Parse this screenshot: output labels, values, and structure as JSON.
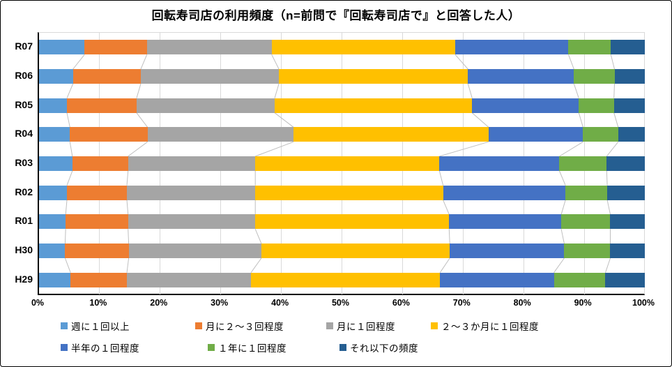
{
  "chart_data": {
    "type": "bar",
    "orientation": "horizontal-stacked",
    "title": "回転寿司店の利用頻度（n=前問で『回転寿司店で』と回答した人）",
    "categories": [
      "R07",
      "R06",
      "R05",
      "R04",
      "R03",
      "R02",
      "R01",
      "H30",
      "H29"
    ],
    "series": [
      {
        "name": "週に１回以上",
        "color": "#5B9BD5",
        "values": [
          7.5,
          5.6,
          4.6,
          5.1,
          5.5,
          4.6,
          4.4,
          4.3,
          5.2
        ]
      },
      {
        "name": "月に２～３回程度",
        "color": "#ED7D31",
        "values": [
          10.3,
          11.2,
          11.5,
          12.8,
          9.2,
          9.9,
          10.3,
          10.5,
          9.3
        ]
      },
      {
        "name": "月に１回程度",
        "color": "#A5A5A5",
        "values": [
          20.6,
          22.8,
          22.8,
          24.1,
          21.0,
          21.2,
          21.0,
          21.9,
          20.5
        ]
      },
      {
        "name": "２～３か月に１回程度",
        "color": "#FFC000",
        "values": [
          30.3,
          31.2,
          32.6,
          32.2,
          30.4,
          31.0,
          32.0,
          31.1,
          31.2
        ]
      },
      {
        "name": "半年の１回程度",
        "color": "#4472C4",
        "values": [
          18.7,
          17.5,
          17.6,
          15.6,
          19.8,
          20.2,
          18.5,
          18.9,
          18.8
        ]
      },
      {
        "name": "１年に１回程度",
        "color": "#70AD47",
        "values": [
          7.0,
          6.7,
          5.8,
          5.8,
          7.8,
          6.9,
          8.1,
          7.6,
          8.5
        ]
      },
      {
        "name": "それ以下の頻度",
        "color": "#255E91",
        "values": [
          5.6,
          5.0,
          5.1,
          4.4,
          6.3,
          6.2,
          5.7,
          5.7,
          6.5
        ]
      }
    ],
    "x_ticks": [
      "0%",
      "10%",
      "20%",
      "30%",
      "40%",
      "50%",
      "60%",
      "70%",
      "80%",
      "90%",
      "100%"
    ],
    "xlim": [
      0,
      100
    ],
    "grid": "vertical-major",
    "legend_position": "bottom",
    "styles": {
      "gridline_color": "#D9D9D9",
      "axis_color": "#000000",
      "connector_line_color": "#BFBFBF",
      "background": "#FFFFFF"
    }
  }
}
